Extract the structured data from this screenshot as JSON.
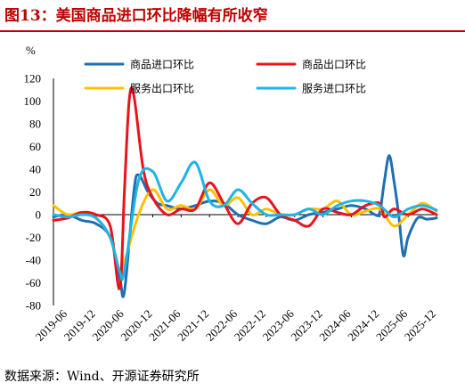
{
  "title": "图13：美国商品进口环比降幅有所收窄",
  "source": "数据来源：Wind、开源证券研究所",
  "chart_data": {
    "type": "line",
    "title": "图13：美国商品进口环比降幅有所收窄",
    "ylabel": "%",
    "ylim": [
      -80,
      120
    ],
    "yticks": [
      -80,
      -60,
      -40,
      -20,
      0,
      20,
      40,
      60,
      80,
      100,
      120
    ],
    "xrange": [
      "2019-03",
      "2025-12"
    ],
    "xticks": [
      "2019-06",
      "2019-12",
      "2020-06",
      "2020-12",
      "2021-06",
      "2021-12",
      "2022-06",
      "2022-12",
      "2023-06",
      "2023-12",
      "2024-06",
      "2024-12",
      "2025-06",
      "2025-12"
    ],
    "legend_position": "top",
    "series": [
      {
        "name": "商品进口环比",
        "color": "#1f6fb2",
        "points": [
          [
            "2019-03",
            -2
          ],
          [
            "2019-06",
            0
          ],
          [
            "2019-09",
            -5
          ],
          [
            "2019-12",
            -8
          ],
          [
            "2020-03",
            -20
          ],
          [
            "2020-05",
            -55
          ],
          [
            "2020-06",
            -68
          ],
          [
            "2020-08",
            20
          ],
          [
            "2020-09",
            35
          ],
          [
            "2020-11",
            20
          ],
          [
            "2021-01",
            10
          ],
          [
            "2021-03",
            8
          ],
          [
            "2021-06",
            5
          ],
          [
            "2021-09",
            8
          ],
          [
            "2021-12",
            12
          ],
          [
            "2022-03",
            10
          ],
          [
            "2022-06",
            0
          ],
          [
            "2022-09",
            -5
          ],
          [
            "2022-12",
            -8
          ],
          [
            "2023-03",
            -2
          ],
          [
            "2023-06",
            -5
          ],
          [
            "2023-09",
            0
          ],
          [
            "2023-12",
            2
          ],
          [
            "2024-03",
            5
          ],
          [
            "2024-06",
            8
          ],
          [
            "2024-09",
            5
          ],
          [
            "2024-11",
            0
          ],
          [
            "2024-12",
            2
          ],
          [
            "2025-01",
            30
          ],
          [
            "2025-02",
            52
          ],
          [
            "2025-03",
            30
          ],
          [
            "2025-04",
            0
          ],
          [
            "2025-05",
            -36
          ],
          [
            "2025-06",
            -20
          ],
          [
            "2025-08",
            -3
          ],
          [
            "2025-10",
            -4
          ],
          [
            "2025-12",
            -3
          ]
        ]
      },
      {
        "name": "商品出口环比",
        "color": "#e8141c",
        "points": [
          [
            "2019-03",
            -5
          ],
          [
            "2019-06",
            -3
          ],
          [
            "2019-09",
            2
          ],
          [
            "2019-12",
            0
          ],
          [
            "2020-03",
            -10
          ],
          [
            "2020-05",
            -65
          ],
          [
            "2020-06",
            20
          ],
          [
            "2020-07",
            100
          ],
          [
            "2020-08",
            105
          ],
          [
            "2020-10",
            40
          ],
          [
            "2020-12",
            15
          ],
          [
            "2021-03",
            0
          ],
          [
            "2021-06",
            5
          ],
          [
            "2021-09",
            5
          ],
          [
            "2021-12",
            28
          ],
          [
            "2022-03",
            10
          ],
          [
            "2022-06",
            -8
          ],
          [
            "2022-09",
            10
          ],
          [
            "2022-12",
            15
          ],
          [
            "2023-03",
            0
          ],
          [
            "2023-06",
            -5
          ],
          [
            "2023-09",
            -10
          ],
          [
            "2023-12",
            5
          ],
          [
            "2024-03",
            2
          ],
          [
            "2024-06",
            0
          ],
          [
            "2024-09",
            8
          ],
          [
            "2024-12",
            10
          ],
          [
            "2025-01",
            -2
          ],
          [
            "2025-03",
            5
          ],
          [
            "2025-06",
            0
          ],
          [
            "2025-09",
            5
          ],
          [
            "2025-12",
            0
          ]
        ]
      },
      {
        "name": "服务出口环比",
        "color": "#ffc000",
        "points": [
          [
            "2019-03",
            8
          ],
          [
            "2019-06",
            0
          ],
          [
            "2019-09",
            2
          ],
          [
            "2019-12",
            -3
          ],
          [
            "2020-03",
            -20
          ],
          [
            "2020-05",
            -50
          ],
          [
            "2020-06",
            -42
          ],
          [
            "2020-09",
            0
          ],
          [
            "2020-12",
            22
          ],
          [
            "2021-03",
            5
          ],
          [
            "2021-06",
            8
          ],
          [
            "2021-09",
            5
          ],
          [
            "2021-12",
            22
          ],
          [
            "2022-03",
            8
          ],
          [
            "2022-06",
            15
          ],
          [
            "2022-09",
            0
          ],
          [
            "2022-12",
            5
          ],
          [
            "2023-03",
            0
          ],
          [
            "2023-06",
            0
          ],
          [
            "2023-09",
            5
          ],
          [
            "2023-12",
            5
          ],
          [
            "2024-03",
            12
          ],
          [
            "2024-06",
            0
          ],
          [
            "2024-09",
            3
          ],
          [
            "2024-12",
            5
          ],
          [
            "2025-03",
            -10
          ],
          [
            "2025-06",
            0
          ],
          [
            "2025-09",
            10
          ],
          [
            "2025-12",
            3
          ]
        ]
      },
      {
        "name": "服务进口环比",
        "color": "#1eb4e6",
        "points": [
          [
            "2019-03",
            0
          ],
          [
            "2019-06",
            -2
          ],
          [
            "2019-09",
            0
          ],
          [
            "2019-12",
            -3
          ],
          [
            "2020-03",
            -20
          ],
          [
            "2020-05",
            -50
          ],
          [
            "2020-06",
            -50
          ],
          [
            "2020-09",
            30
          ],
          [
            "2020-12",
            38
          ],
          [
            "2021-03",
            12
          ],
          [
            "2021-06",
            28
          ],
          [
            "2021-09",
            46
          ],
          [
            "2021-12",
            12
          ],
          [
            "2022-03",
            8
          ],
          [
            "2022-06",
            22
          ],
          [
            "2022-09",
            10
          ],
          [
            "2022-12",
            0
          ],
          [
            "2023-03",
            0
          ],
          [
            "2023-06",
            0
          ],
          [
            "2023-09",
            5
          ],
          [
            "2023-12",
            0
          ],
          [
            "2024-03",
            8
          ],
          [
            "2024-06",
            12
          ],
          [
            "2024-09",
            12
          ],
          [
            "2024-12",
            8
          ],
          [
            "2025-03",
            -2
          ],
          [
            "2025-06",
            5
          ],
          [
            "2025-09",
            8
          ],
          [
            "2025-12",
            4
          ]
        ]
      }
    ]
  }
}
